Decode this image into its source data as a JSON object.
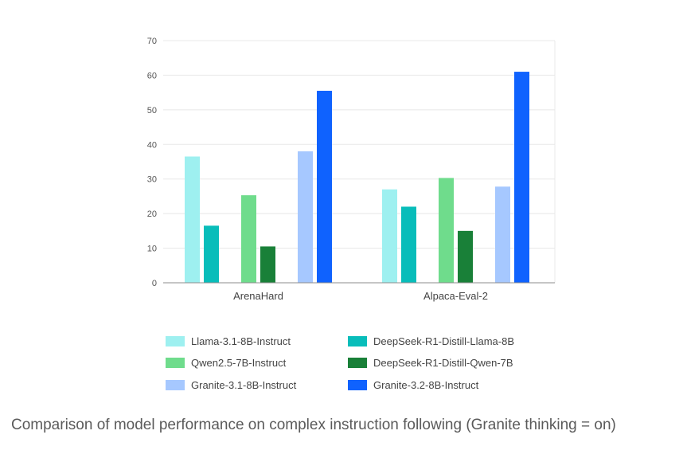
{
  "chart_data": {
    "type": "bar",
    "categories": [
      "ArenaHard",
      "Alpaca-Eval-2"
    ],
    "ylim": [
      0,
      70
    ],
    "yticks": [
      0,
      10,
      20,
      30,
      40,
      50,
      60,
      70
    ],
    "grid": true,
    "legend_position": "bottom",
    "series": [
      {
        "name": "Llama-3.1-8B-Instruct",
        "color": "#9ef0f0",
        "values": [
          36.5,
          27
        ]
      },
      {
        "name": "DeepSeek-R1-Distill-Llama-8B",
        "color": "#08bdba",
        "values": [
          16.5,
          22
        ]
      },
      {
        "name": "Qwen2.5-7B-Instruct",
        "color": "#6fdc8c",
        "values": [
          25.3,
          30.3
        ]
      },
      {
        "name": "DeepSeek-R1-Distill-Qwen-7B",
        "color": "#198038",
        "values": [
          10.5,
          15
        ]
      },
      {
        "name": "Granite-3.1-8B-Instruct",
        "color": "#a6c8ff",
        "values": [
          38,
          27.8
        ]
      },
      {
        "name": "Granite-3.2-8B-Instruct",
        "color": "#0f62fe",
        "values": [
          55.5,
          61
        ]
      }
    ],
    "pair_order": [
      [
        0,
        1
      ],
      [
        2,
        3
      ],
      [
        4,
        5
      ]
    ],
    "legend_order": [
      0,
      1,
      2,
      3,
      4,
      5
    ]
  },
  "caption": "Comparison of model performance on complex instruction following (Granite thinking = on)"
}
